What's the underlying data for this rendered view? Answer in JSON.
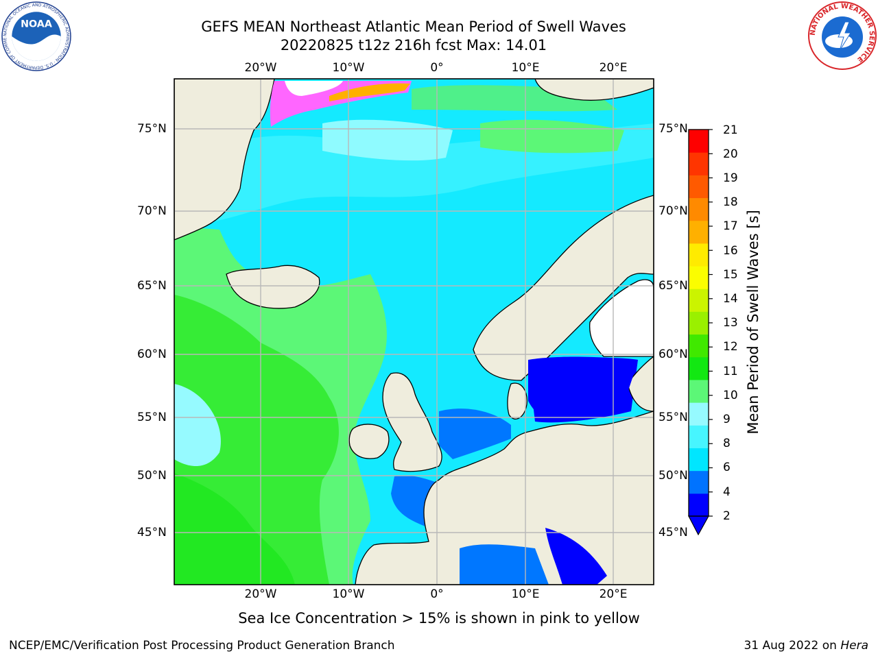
{
  "title": {
    "line1": "GEFS MEAN Northeast Atlantic Mean Period of Swell Waves",
    "line2": "20220825 t12z 216h fcst   Max: 14.01"
  },
  "map": {
    "lon_ticks": [
      "20°W",
      "10°W",
      "0°",
      "10°E",
      "20°E"
    ],
    "lat_ticks": [
      "75°N",
      "70°N",
      "65°N",
      "60°N",
      "55°N",
      "50°N",
      "45°N"
    ],
    "colors": {
      "land": "#efeddd",
      "ocean_ice": "#ffffff"
    }
  },
  "colorbar": {
    "label": "Mean Period of Swell Waves [s]",
    "ticks": [
      "21",
      "20",
      "19",
      "18",
      "17",
      "16",
      "15",
      "14",
      "13",
      "12",
      "11",
      "10",
      "9",
      "8",
      "6",
      "4",
      "2"
    ],
    "colors": [
      "#0000fe",
      "#0073ff",
      "#00e6ff",
      "#47f5ff",
      "#96faff",
      "#5cf777",
      "#12e812",
      "#40e900",
      "#9af000",
      "#cbf400",
      "#fbfd00",
      "#ffeb00",
      "#ffb000",
      "#ff8a00",
      "#ff5a00",
      "#ff3500",
      "#fe0000"
    ]
  },
  "footer": {
    "note": "Sea Ice Concentration > 15% is shown in pink to yellow",
    "left": "NCEP/EMC/Verification Post Processing Product Generation Branch",
    "date": "31 Aug 2022 on ",
    "host": "Hera"
  },
  "logos": {
    "noaa_text": "NOAA",
    "noaa_ring": "NATIONAL OCEANIC AND ATMOSPHERIC ADMINISTRATION · U.S. DEPARTMENT OF COMMERCE",
    "nws_ring": "NATIONAL WEATHER SERVICE"
  }
}
